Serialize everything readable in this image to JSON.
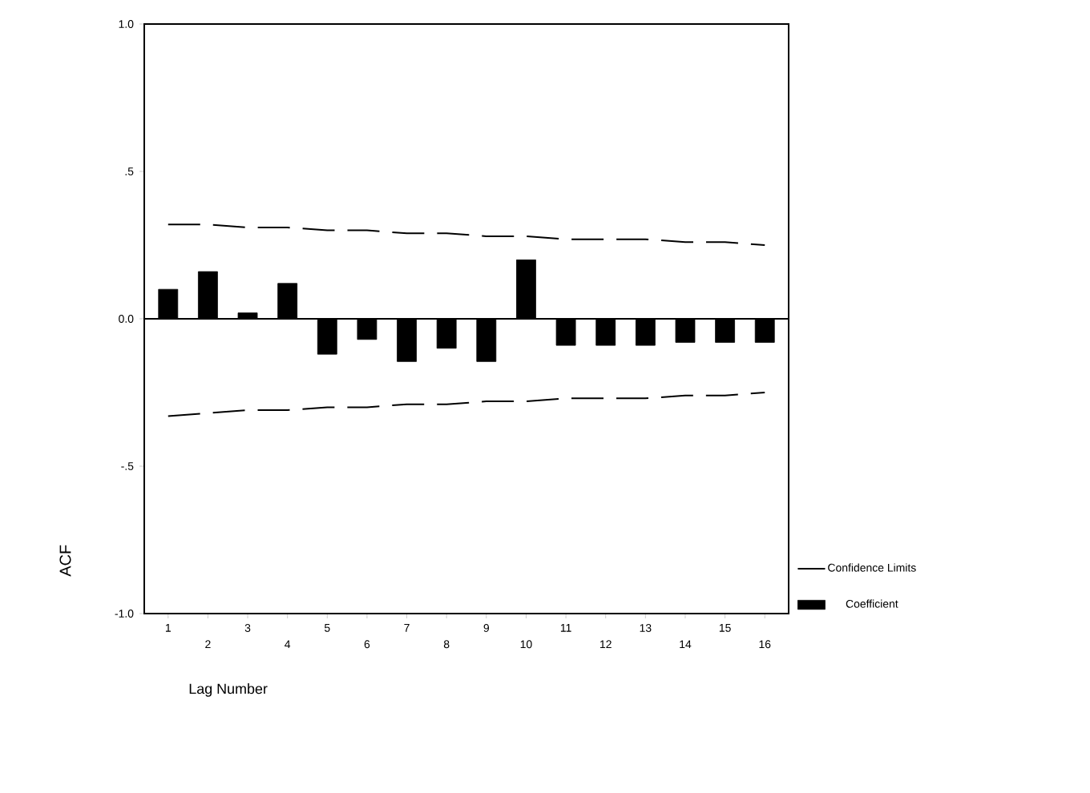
{
  "chart_data": {
    "type": "bar",
    "xlabel": "Lag Number",
    "ylabel": "ACF",
    "categories": [
      "1",
      "2",
      "3",
      "4",
      "5",
      "6",
      "7",
      "8",
      "9",
      "10",
      "11",
      "12",
      "13",
      "14",
      "15",
      "16"
    ],
    "series": [
      {
        "name": "Coefficient",
        "color": "#000000",
        "values": [
          0.1,
          0.16,
          0.02,
          0.12,
          -0.12,
          -0.07,
          -0.145,
          -0.1,
          -0.145,
          0.2,
          -0.09,
          -0.09,
          -0.09,
          -0.08,
          -0.08,
          -0.08
        ]
      },
      {
        "name": "Confidence Limits",
        "type": "line",
        "line_style": "dashed",
        "color": "#000000",
        "values": [
          0.32,
          0.32,
          0.31,
          0.31,
          0.3,
          0.3,
          0.29,
          0.29,
          0.28,
          0.28,
          0.27,
          0.27,
          0.27,
          0.26,
          0.26,
          0.25
        ]
      },
      {
        "type": "line",
        "line_style": "dashed",
        "color": "#000000",
        "values": [
          -0.33,
          -0.32,
          -0.31,
          -0.31,
          -0.3,
          -0.3,
          -0.29,
          -0.29,
          -0.28,
          -0.28,
          -0.27,
          -0.27,
          -0.27,
          -0.26,
          -0.26,
          -0.25
        ]
      }
    ],
    "ylim": [
      -1,
      1
    ],
    "yticks": [
      {
        "value": -1,
        "label": "-1.0"
      },
      {
        "value": -0.5,
        "label": "-.5"
      },
      {
        "value": 0,
        "label": "0.0"
      },
      {
        "value": 0.5,
        "label": ".5"
      },
      {
        "value": 1,
        "label": "1.0"
      }
    ],
    "ref_lines": [
      {
        "axis": "y",
        "value": 0
      }
    ],
    "grid": false,
    "legend": "right"
  }
}
